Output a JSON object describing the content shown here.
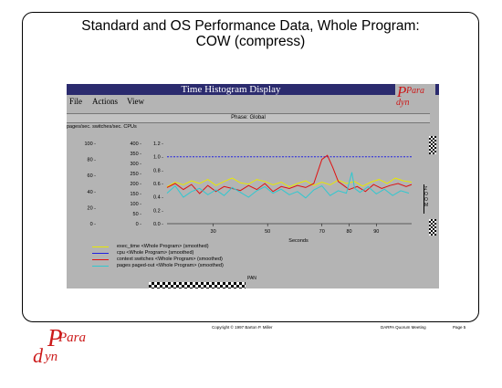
{
  "slide": {
    "title_line1": "Standard and OS Performance Data, Whole Program:",
    "title_line2": "COW (compress)"
  },
  "window": {
    "title": "Time Histogram Display",
    "menu": [
      "File",
      "Actions",
      "View"
    ],
    "logo_top": "Para",
    "logo_bottom": "dyn",
    "phase_label": "Phase: Global",
    "axis_headers": "pages/sec.   switches/sec.   CPUs",
    "right_note": "Z\nO\nO\nM",
    "pan_label": "PAN"
  },
  "chart_data": {
    "type": "line",
    "xlabel": "Seconds",
    "xlim": [
      13,
      103
    ],
    "x_ticks": [
      30,
      50,
      70,
      80,
      90
    ],
    "y_axes": [
      {
        "name": "pages/sec.",
        "ticks": [
          0,
          20,
          40,
          60,
          80,
          100
        ]
      },
      {
        "name": "switches/sec.",
        "ticks": [
          0,
          50,
          100,
          150,
          200,
          250,
          300,
          350,
          400
        ]
      },
      {
        "name": "CPUs",
        "ticks": [
          0.0,
          0.2,
          0.4,
          0.6,
          0.8,
          1.0,
          1.2
        ]
      }
    ],
    "series": [
      {
        "name": "exec_time <Whole Program> (smoothed)",
        "color": "#e8e800",
        "axis": "CPUs",
        "x": [
          13,
          16,
          19,
          22,
          25,
          28,
          31,
          34,
          37,
          40,
          43,
          46,
          49,
          52,
          55,
          58,
          61,
          64,
          67,
          70,
          73,
          76,
          79,
          82,
          85,
          88,
          91,
          94,
          97,
          100,
          103
        ],
        "y": [
          0.55,
          0.62,
          0.58,
          0.64,
          0.6,
          0.66,
          0.57,
          0.63,
          0.68,
          0.61,
          0.59,
          0.66,
          0.63,
          0.58,
          0.62,
          0.55,
          0.6,
          0.64,
          0.57,
          0.62,
          0.58,
          0.65,
          0.6,
          0.63,
          0.56,
          0.62,
          0.66,
          0.6,
          0.68,
          0.64,
          0.62
        ]
      },
      {
        "name": "cpu <Whole Program> (smoothed)",
        "color": "#2020e0",
        "axis": "CPUs",
        "x": [
          13,
          103
        ],
        "y": [
          1.0,
          1.0
        ]
      },
      {
        "name": "context switches <Whole Program> (smoothed)",
        "color": "#e01010",
        "axis": "switches/sec.",
        "x": [
          13,
          16,
          19,
          22,
          25,
          28,
          31,
          34,
          37,
          40,
          43,
          46,
          49,
          52,
          55,
          58,
          61,
          64,
          67,
          70,
          72,
          74,
          76,
          78,
          80,
          83,
          86,
          89,
          92,
          95,
          98,
          101,
          103
        ],
        "y": [
          180,
          200,
          170,
          195,
          150,
          190,
          160,
          185,
          175,
          165,
          190,
          170,
          200,
          160,
          185,
          175,
          190,
          180,
          200,
          320,
          340,
          280,
          210,
          190,
          170,
          185,
          160,
          195,
          175,
          190,
          200,
          185,
          195
        ]
      },
      {
        "name": "pages paged-out <Whole Program> (smoothed)",
        "color": "#30c8d0",
        "axis": "pages/sec.",
        "x": [
          13,
          16,
          19,
          22,
          25,
          28,
          31,
          34,
          37,
          40,
          43,
          46,
          49,
          52,
          55,
          58,
          61,
          64,
          67,
          70,
          73,
          76,
          79,
          81,
          82,
          84,
          87,
          90,
          93,
          96,
          99,
          102
        ],
        "y": [
          38,
          47,
          33,
          40,
          44,
          36,
          42,
          35,
          45,
          39,
          33,
          41,
          46,
          38,
          43,
          36,
          40,
          32,
          42,
          47,
          35,
          41,
          38,
          64,
          44,
          39,
          46,
          37,
          43,
          35,
          41,
          38
        ]
      }
    ]
  },
  "legend": [
    {
      "label": "exec_time <Whole Program> (smoothed)",
      "color": "#e8e800"
    },
    {
      "label": "cpu <Whole Program> (smoothed)",
      "color": "#2020e0"
    },
    {
      "label": "context switches <Whole Program> (smoothed)",
      "color": "#e01010"
    },
    {
      "label": "pages paged-out <Whole Program> (smoothed)",
      "color": "#30c8d0"
    }
  ],
  "footer": {
    "copyright": "Copyright © 1997 Barton P. Miller",
    "talk": "DARPA Quorum Meeting",
    "page": "Page 5"
  },
  "colors": {
    "titlebar": "#2b2b6e",
    "window_bg": "#b4b4b4",
    "logo_red": "#cc1a1a"
  }
}
